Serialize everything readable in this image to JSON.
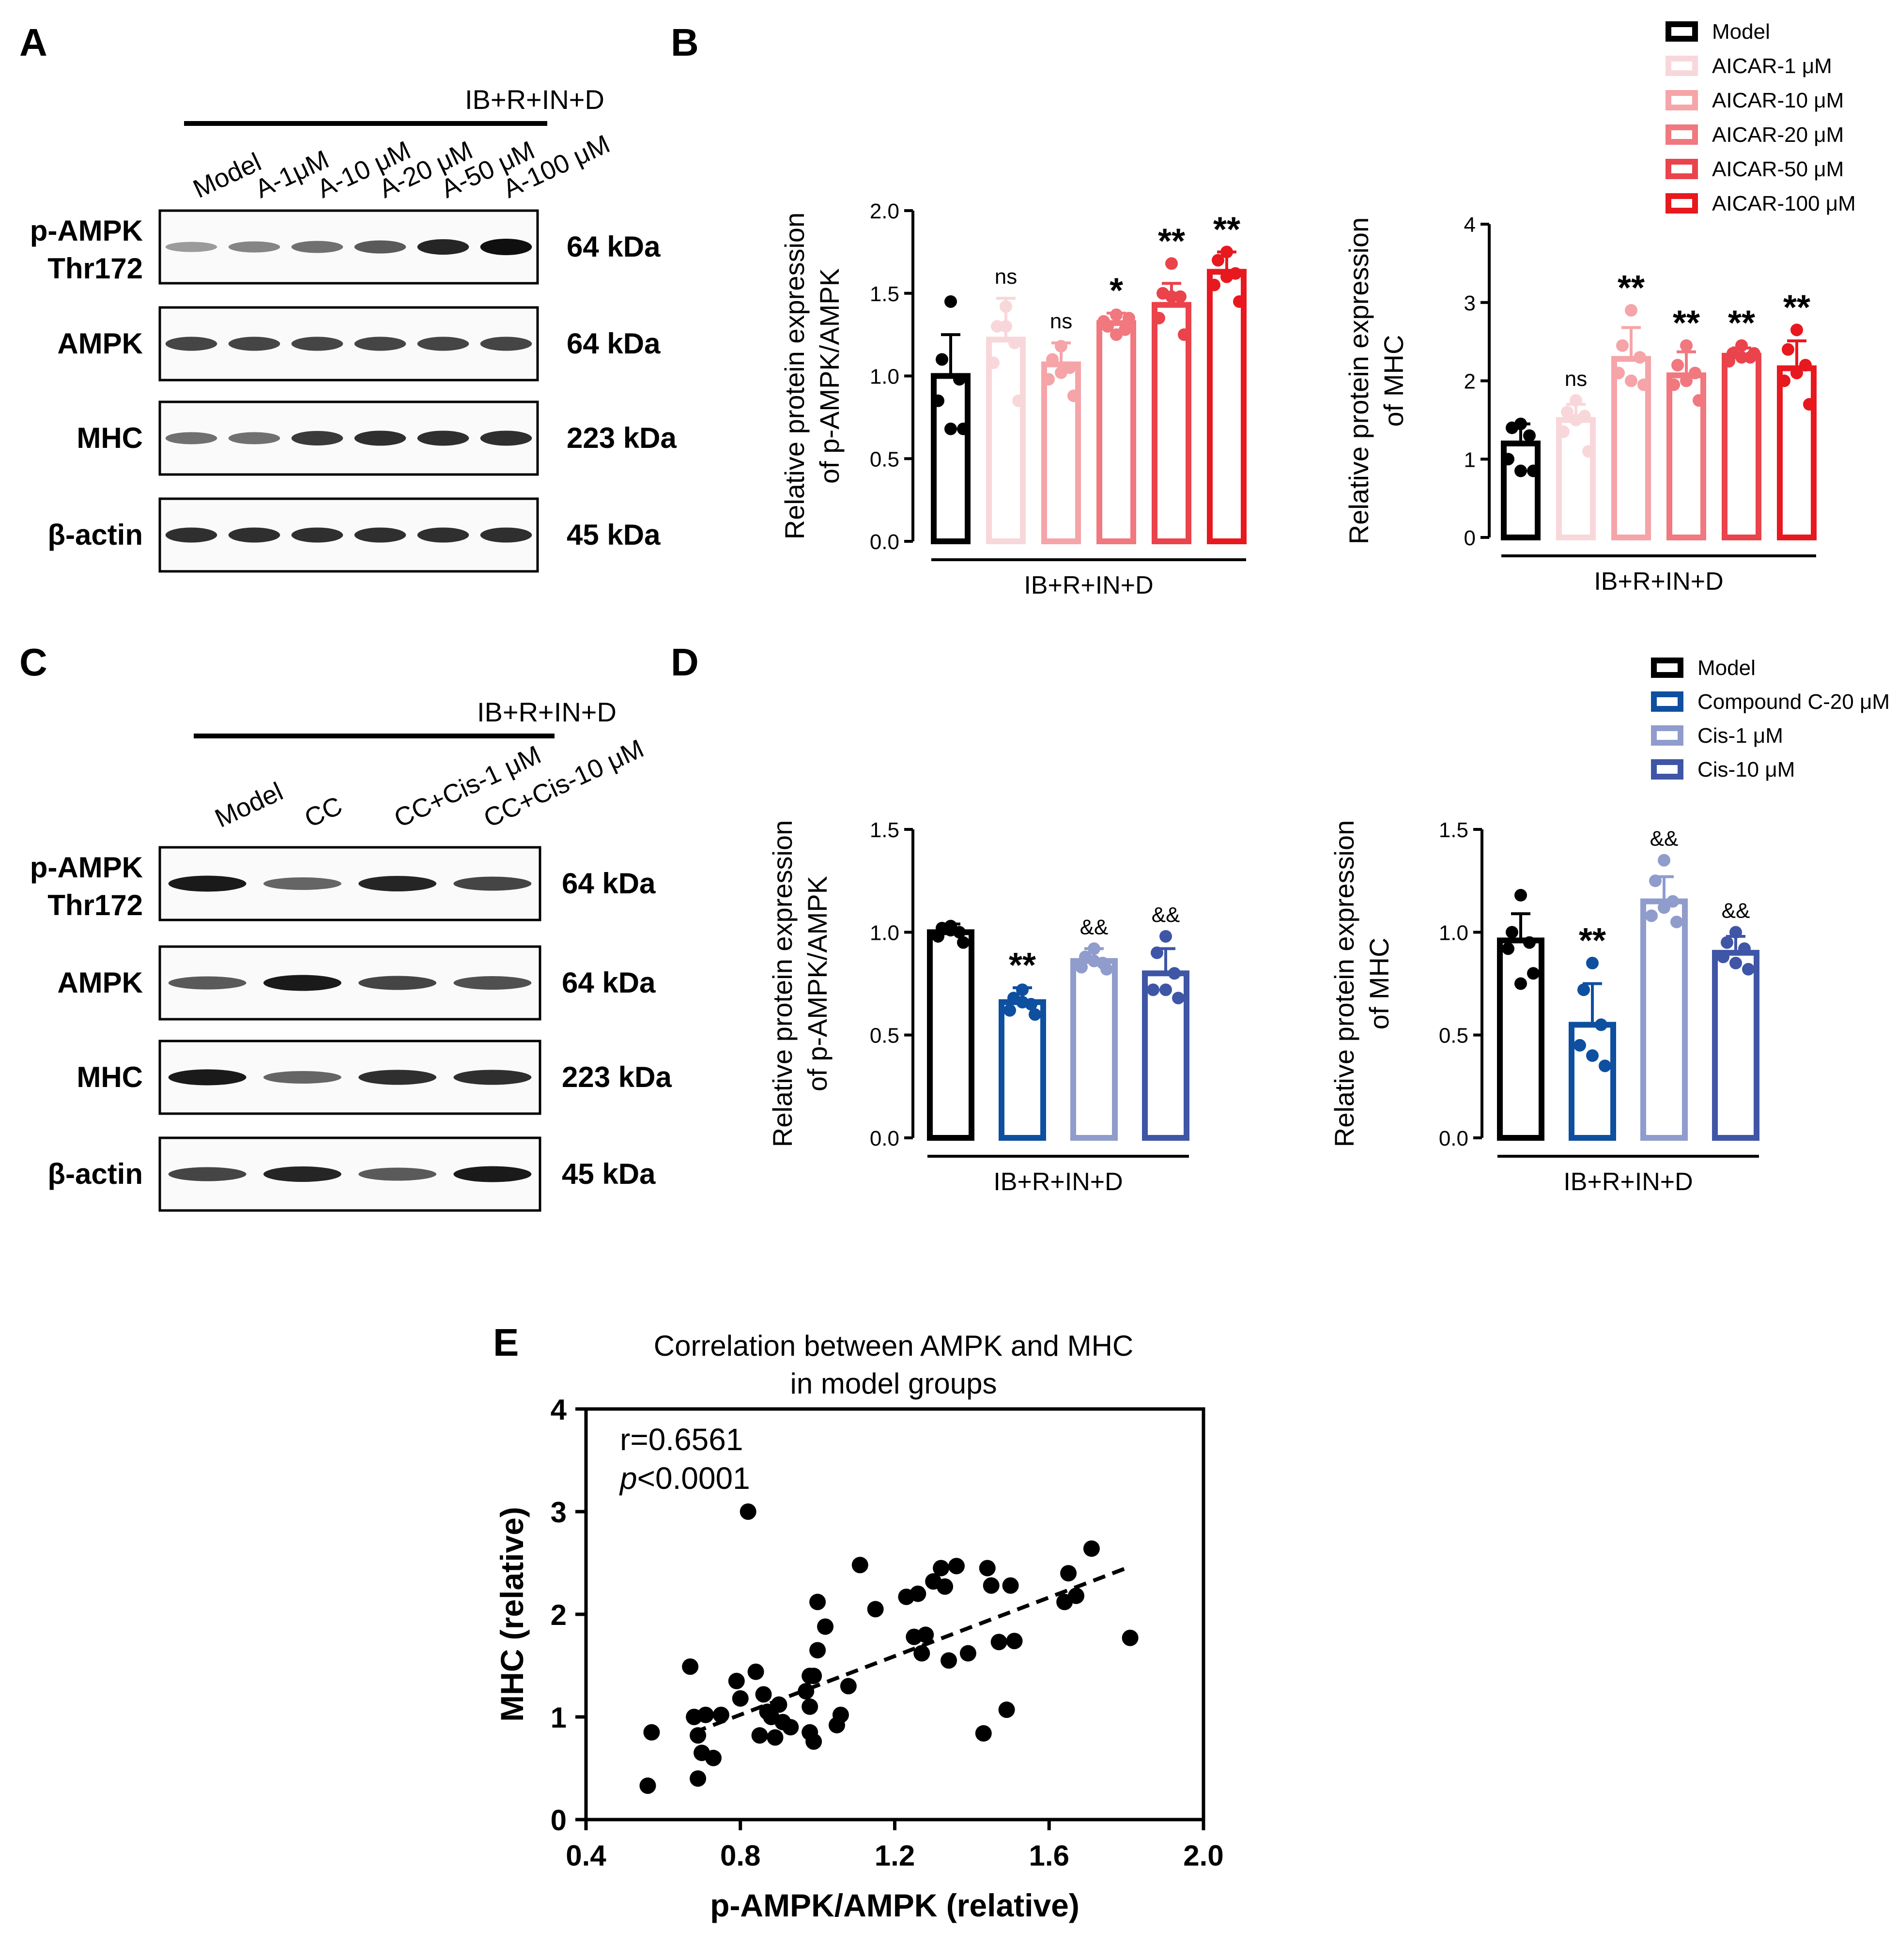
{
  "panels": {
    "a": "A",
    "b": "B",
    "c": "C",
    "d": "D",
    "e": "E"
  },
  "colors": {
    "black": "#000000",
    "aicar": [
      "#000000",
      "#f8d7da",
      "#f5a4a8",
      "#f0787e",
      "#ea434b",
      "#e8181f"
    ],
    "blue": [
      "#000000",
      "#0e4fa0",
      "#8f9ccc",
      "#3f55a6"
    ]
  },
  "western_a": {
    "group": "IB+R+IN+D",
    "lanes": [
      "Model",
      "A-1μM",
      "A-10 μM",
      "A-20 μM",
      "A-50 μM",
      "A-100 μM"
    ],
    "blots": [
      {
        "label_1": "p-AMPK",
        "label_2": "Thr172",
        "kda": "64 kDa",
        "intensity": [
          0.35,
          0.45,
          0.55,
          0.65,
          0.9,
          1.0
        ]
      },
      {
        "label_1": "AMPK",
        "label_2": "",
        "kda": "64 kDa",
        "intensity": [
          0.75,
          0.75,
          0.75,
          0.75,
          0.75,
          0.75
        ]
      },
      {
        "label_1": "MHC",
        "label_2": "",
        "kda": "223 kDa",
        "intensity": [
          0.55,
          0.55,
          0.8,
          0.85,
          0.85,
          0.85
        ]
      },
      {
        "label_1": "β-actin",
        "label_2": "",
        "kda": "45 kDa",
        "intensity": [
          0.85,
          0.85,
          0.85,
          0.85,
          0.85,
          0.85
        ]
      }
    ]
  },
  "western_c": {
    "group": "IB+R+IN+D",
    "lanes": [
      "Model",
      "CC",
      "CC+Cis-1 μM",
      "CC+Cis-10 μM"
    ],
    "blots": [
      {
        "label_1": "p-AMPK",
        "label_2": "Thr172",
        "kda": "64 kDa",
        "intensity": [
          0.95,
          0.6,
          0.9,
          0.75
        ]
      },
      {
        "label_1": "AMPK",
        "label_2": "",
        "kda": "64 kDa",
        "intensity": [
          0.65,
          0.95,
          0.75,
          0.7
        ]
      },
      {
        "label_1": "MHC",
        "label_2": "",
        "kda": "223 kDa",
        "intensity": [
          0.95,
          0.6,
          0.85,
          0.85
        ]
      },
      {
        "label_1": "β-actin",
        "label_2": "",
        "kda": "45 kDa",
        "intensity": [
          0.75,
          0.9,
          0.65,
          0.95
        ]
      }
    ]
  },
  "legend_b": [
    "Model",
    "AICAR-1 μM",
    "AICAR-10 μM",
    "AICAR-20 μM",
    "AICAR-50 μM",
    "AICAR-100 μM"
  ],
  "legend_d": [
    "Model",
    "Compound C-20 μM",
    "Cis-1 μM",
    "Cis-10 μM"
  ],
  "chart_data": [
    {
      "id": "B1",
      "type": "bar",
      "ylabel_1": "Relative protein expression",
      "ylabel_2": "of p-AMPK/AMPK",
      "xlabel": "IB+R+IN+D",
      "ylim": [
        0,
        2.0
      ],
      "yticks": [
        "0.0",
        "0.5",
        "1.0",
        "1.5",
        "2.0"
      ],
      "ytick_values": [
        0,
        0.5,
        1.0,
        1.5,
        2.0
      ],
      "categories": [
        "Model",
        "AICAR-1 μM",
        "AICAR-10 μM",
        "AICAR-20 μM",
        "AICAR-50 μM",
        "AICAR-100 μM"
      ],
      "values": [
        1.0,
        1.22,
        1.07,
        1.32,
        1.43,
        1.63
      ],
      "errors": [
        0.25,
        0.25,
        0.13,
        0.06,
        0.13,
        0.12
      ],
      "annotations": [
        "",
        "ns",
        "ns",
        "*",
        "**",
        "**"
      ],
      "points": [
        [
          1.45,
          1.1,
          0.98,
          0.85,
          0.68,
          0.68
        ],
        [
          1.42,
          1.3,
          1.2,
          1.08,
          0.85,
          1.3
        ],
        [
          1.18,
          1.1,
          1.05,
          0.98,
          0.88,
          1.02
        ],
        [
          1.37,
          1.3,
          1.28,
          1.33,
          1.35,
          1.25
        ],
        [
          1.68,
          1.5,
          1.48,
          1.35,
          1.25,
          1.48
        ],
        [
          1.75,
          1.7,
          1.62,
          1.55,
          1.45,
          1.6
        ]
      ]
    },
    {
      "id": "B2",
      "type": "bar",
      "ylabel_1": "Relative protein expression",
      "ylabel_2": "of MHC",
      "xlabel": "IB+R+IN+D",
      "ylim": [
        0,
        4
      ],
      "yticks": [
        "0",
        "1",
        "2",
        "3",
        "4"
      ],
      "ytick_values": [
        0,
        1,
        2,
        3,
        4
      ],
      "categories": [
        "Model",
        "AICAR-1 μM",
        "AICAR-10 μM",
        "AICAR-20 μM",
        "AICAR-50 μM",
        "AICAR-100 μM"
      ],
      "values": [
        1.2,
        1.5,
        2.28,
        2.07,
        2.32,
        2.16
      ],
      "errors": [
        0.25,
        0.2,
        0.4,
        0.3,
        0.1,
        0.35
      ],
      "annotations": [
        "",
        "ns",
        "**",
        "**",
        "**",
        "**"
      ],
      "points": [
        [
          1.45,
          1.4,
          1.3,
          1.0,
          0.85,
          0.85
        ],
        [
          1.75,
          1.6,
          1.55,
          1.35,
          1.1,
          1.5
        ],
        [
          2.9,
          2.45,
          2.3,
          2.1,
          1.95,
          2.0
        ],
        [
          2.45,
          2.2,
          2.1,
          1.95,
          1.75,
          2.0
        ],
        [
          2.45,
          2.35,
          2.3,
          2.25,
          2.35,
          2.3
        ],
        [
          2.65,
          2.4,
          2.2,
          2.0,
          1.7,
          2.1
        ]
      ]
    },
    {
      "id": "D1",
      "type": "bar",
      "ylabel_1": "Relative protein expression",
      "ylabel_2": "of p-AMPK/AMPK",
      "xlabel": "IB+R+IN+D",
      "ylim": [
        0,
        1.5
      ],
      "yticks": [
        "0.0",
        "0.5",
        "1.0",
        "1.5"
      ],
      "ytick_values": [
        0,
        0.5,
        1.0,
        1.5
      ],
      "categories": [
        "Model",
        "Compound C-20 μM",
        "Cis-1 μM",
        "Cis-10 μM"
      ],
      "values": [
        1.0,
        0.66,
        0.86,
        0.8
      ],
      "errors": [
        0.04,
        0.07,
        0.06,
        0.12
      ],
      "annotations": [
        "",
        "**",
        "&&",
        "&&"
      ],
      "points": [
        [
          1.03,
          1.02,
          1.0,
          0.98,
          0.95,
          1.01
        ],
        [
          0.72,
          0.68,
          0.65,
          0.62,
          0.6,
          0.66
        ],
        [
          0.92,
          0.88,
          0.85,
          0.83,
          0.82,
          0.86
        ],
        [
          0.98,
          0.9,
          0.8,
          0.72,
          0.68,
          0.72
        ]
      ]
    },
    {
      "id": "D2",
      "type": "bar",
      "ylabel_1": "Relative protein expression",
      "ylabel_2": "of MHC",
      "xlabel": "IB+R+IN+D",
      "ylim": [
        0,
        1.5
      ],
      "yticks": [
        "0.0",
        "0.5",
        "1.0",
        "1.5"
      ],
      "ytick_values": [
        0,
        0.5,
        1.0,
        1.5
      ],
      "categories": [
        "Model",
        "Compound C-20 μM",
        "Cis-1 μM",
        "Cis-10 μM"
      ],
      "values": [
        0.96,
        0.55,
        1.15,
        0.9
      ],
      "errors": [
        0.13,
        0.2,
        0.12,
        0.08
      ],
      "annotations": [
        "",
        "**",
        "&&",
        "&&"
      ],
      "points": [
        [
          1.18,
          1.0,
          0.95,
          0.92,
          0.8,
          0.75
        ],
        [
          0.85,
          0.72,
          0.55,
          0.45,
          0.35,
          0.4
        ],
        [
          1.35,
          1.25,
          1.15,
          1.08,
          1.05,
          1.12
        ],
        [
          1.0,
          0.95,
          0.92,
          0.88,
          0.82,
          0.85
        ]
      ]
    },
    {
      "id": "E",
      "type": "scatter",
      "title_1": "Correlation between AMPK and MHC",
      "title_2": "in model groups",
      "xlabel": "p-AMPK/AMPK (relative)",
      "ylabel": "MHC (relative)",
      "xlim": [
        0.4,
        2.0
      ],
      "ylim": [
        0,
        4
      ],
      "xticks": [
        "0.4",
        "0.8",
        "1.2",
        "1.6",
        "2.0"
      ],
      "xtick_values": [
        0.4,
        0.8,
        1.2,
        1.6,
        2.0
      ],
      "yticks": [
        "0",
        "1",
        "2",
        "3",
        "4"
      ],
      "ytick_values": [
        0,
        1,
        2,
        3,
        4
      ],
      "r_text": "r=0.6561",
      "p_italic": "p",
      "p_text": "<0.0001",
      "fit": {
        "x": [
          0.68,
          1.8
        ],
        "y": [
          0.85,
          2.45
        ]
      },
      "x": [
        0.56,
        0.57,
        0.67,
        0.68,
        0.69,
        0.69,
        0.7,
        0.71,
        0.73,
        0.79,
        0.8,
        0.82,
        0.84,
        0.85,
        0.86,
        0.87,
        0.88,
        0.89,
        0.91,
        0.93,
        0.97,
        0.98,
        0.98,
        0.99,
        1.0,
        1.0,
        1.02,
        1.05,
        1.06,
        1.08,
        1.11,
        1.15,
        1.23,
        1.25,
        1.26,
        1.27,
        1.28,
        1.3,
        1.32,
        1.33,
        1.34,
        1.36,
        1.39,
        1.43,
        1.44,
        1.45,
        1.47,
        1.49,
        1.5,
        1.51,
        1.64,
        1.65,
        1.67,
        1.71,
        1.81,
        0.98,
        0.75,
        0.99,
        0.9
      ],
      "y": [
        0.33,
        0.85,
        1.49,
        1.0,
        0.4,
        0.82,
        0.65,
        1.02,
        0.6,
        1.35,
        1.18,
        3.0,
        1.44,
        0.82,
        1.22,
        1.05,
        1.0,
        0.8,
        0.95,
        0.9,
        1.25,
        1.4,
        0.85,
        0.76,
        1.65,
        2.12,
        1.88,
        0.92,
        1.02,
        1.3,
        2.48,
        2.05,
        2.17,
        1.78,
        2.2,
        1.62,
        1.8,
        2.32,
        2.45,
        2.27,
        1.55,
        2.47,
        1.62,
        0.84,
        2.45,
        2.28,
        1.73,
        1.07,
        2.28,
        1.74,
        2.12,
        2.4,
        2.18,
        2.64,
        1.77,
        1.1,
        1.02,
        1.4,
        1.12
      ]
    }
  ]
}
